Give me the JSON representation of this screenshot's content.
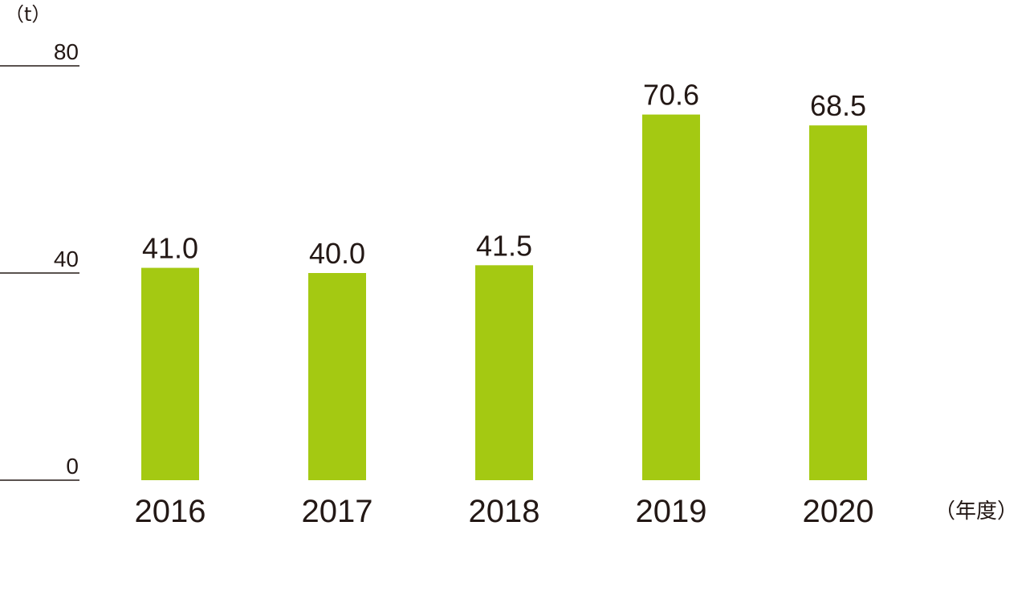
{
  "chart_data": {
    "type": "bar",
    "categories": [
      "2016",
      "2017",
      "2018",
      "2019",
      "2020"
    ],
    "values": [
      41.0,
      40.0,
      41.5,
      70.6,
      68.5
    ],
    "value_labels": [
      "41.0",
      "40.0",
      "41.5",
      "70.6",
      "68.5"
    ],
    "y_unit": "（t）",
    "x_unit": "（年度）",
    "ylim": [
      0,
      80
    ],
    "y_ticks": [
      0,
      40,
      80
    ],
    "bar_color": "#a4c912",
    "text_color": "#231815",
    "grid": false
  }
}
